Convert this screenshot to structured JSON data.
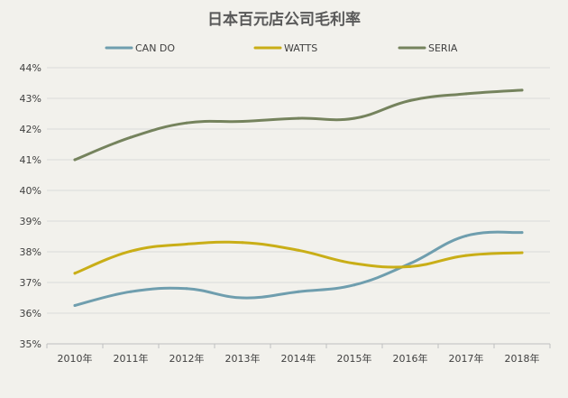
{
  "chart_data": {
    "type": "line",
    "title": "日本百元店公司毛利率",
    "categories": [
      "2010年",
      "2011年",
      "2012年",
      "2013年",
      "2014年",
      "2015年",
      "2016年",
      "2017年",
      "2018年"
    ],
    "y_ticks": [
      "35%",
      "36%",
      "37%",
      "38%",
      "39%",
      "40%",
      "41%",
      "42%",
      "43%",
      "44%"
    ],
    "ylim": [
      35,
      44
    ],
    "y_unit": "%",
    "grid": true,
    "legend_position": "top",
    "series": [
      {
        "name": "CAN DO",
        "color": "#6f9eae",
        "values": [
          36.25,
          36.7,
          36.8,
          36.5,
          36.7,
          36.92,
          37.62,
          38.52,
          38.63
        ]
      },
      {
        "name": "WATTS",
        "color": "#c9ae17",
        "values": [
          37.3,
          38.02,
          38.25,
          38.3,
          38.05,
          37.62,
          37.52,
          37.88,
          37.97
        ]
      },
      {
        "name": "SERIA",
        "color": "#75835d",
        "values": [
          41.0,
          41.73,
          42.2,
          42.25,
          42.35,
          42.35,
          42.93,
          43.15,
          43.27
        ]
      }
    ]
  }
}
